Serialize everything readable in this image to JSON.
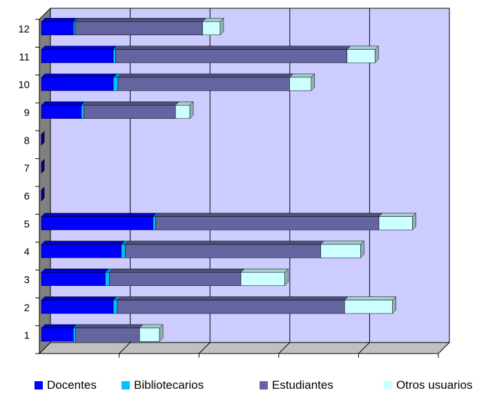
{
  "chart_data": {
    "type": "bar",
    "orientation": "horizontal",
    "stacked": true,
    "style": "3d",
    "categories": [
      "1",
      "2",
      "3",
      "4",
      "5",
      "6",
      "7",
      "8",
      "9",
      "10",
      "11",
      "12"
    ],
    "series": [
      {
        "name": "Docentes",
        "color": "#0000ff",
        "values": [
          4,
          9,
          8,
          10,
          14,
          0,
          0,
          0,
          5,
          9,
          9,
          4
        ]
      },
      {
        "name": "Bibliotecarios",
        "color": "#00c0ff",
        "values": [
          0.3,
          0.5,
          0.5,
          0.5,
          0.3,
          0,
          0,
          0,
          0.3,
          0.6,
          0.3,
          0.2
        ]
      },
      {
        "name": "Estudiantes",
        "color": "#6464a0",
        "values": [
          8,
          28.5,
          16.5,
          24.5,
          28,
          0,
          0,
          0,
          11.5,
          21.5,
          29,
          16
        ]
      },
      {
        "name": "Otros usuarios",
        "color": "#ccffff",
        "values": [
          2.5,
          6,
          5.5,
          5,
          4.2,
          0,
          0,
          0,
          1.8,
          2.7,
          3.5,
          2.2
        ]
      }
    ],
    "xlim": [
      0,
      50
    ],
    "grid": true,
    "x_tick_labels_shown": false,
    "legend_position": "bottom"
  },
  "legend": {
    "items": [
      {
        "label": "Docentes",
        "color": "#0000ff"
      },
      {
        "label": "Bibliotecarios",
        "color": "#00c0ff"
      },
      {
        "label": "Estudiantes",
        "color": "#6464a0"
      },
      {
        "label": "Otros usuarios",
        "color": "#ccffff"
      }
    ]
  }
}
